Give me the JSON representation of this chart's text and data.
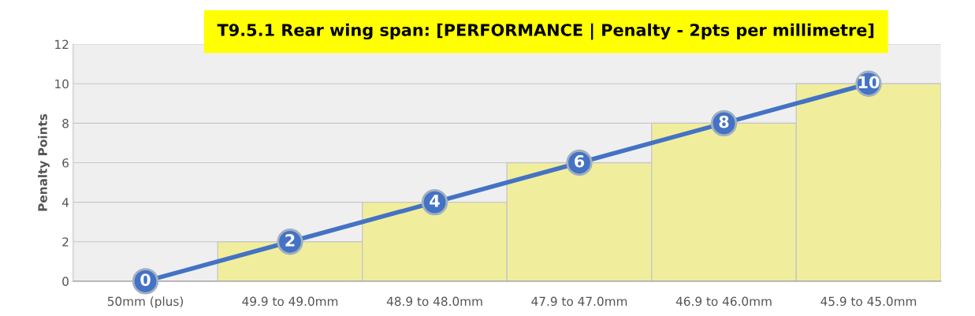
{
  "chart_data": {
    "type": "bar",
    "title": "T9.5.1 Rear wing span: [PERFORMANCE | Penalty - 2pts per millimetre]",
    "ylabel": "Penalty Points",
    "categories": [
      "50mm (plus)",
      "49.9 to 49.0mm",
      "48.9 to 48.0mm",
      "47.9 to 47.0mm",
      "46.9 to 46.0mm",
      "45.9 to 45.0mm"
    ],
    "series": [
      {
        "color": "#f0ee9c",
        "values": [
          0,
          2,
          4,
          6,
          8,
          10
        ]
      },
      {
        "type": "line",
        "color": "#4472c4",
        "values": [
          0,
          2,
          4,
          6,
          8,
          10
        ],
        "value_labels": [
          "0",
          "2",
          "4",
          "6",
          "8",
          "10"
        ]
      }
    ],
    "ylim": [
      0,
      12
    ],
    "yticks": [
      0,
      2,
      4,
      6,
      8,
      10,
      12
    ],
    "grid": "y",
    "marker": "circle",
    "line_style": "solid"
  }
}
